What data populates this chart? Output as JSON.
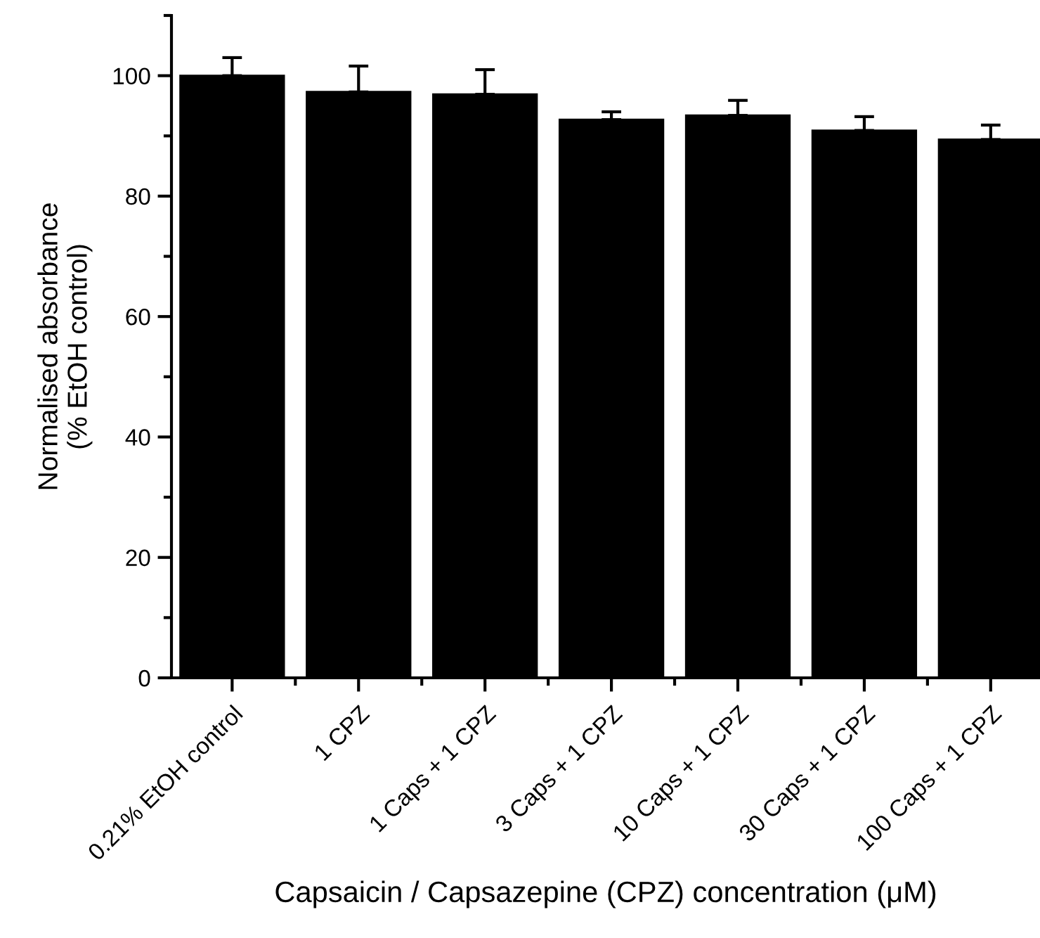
{
  "chart_data": {
    "type": "bar",
    "xlabel": "Capsaicin / Capsazepine (CPZ) concentration (μM)",
    "ylabel": "Normalised absorbance\n(% EtOH control)",
    "categories": [
      "0.21% EtOH control",
      "1 CPZ",
      "1 Caps + 1 CPZ",
      "3 Caps + 1 CPZ",
      "10 Caps + 1 CPZ",
      "30 Caps + 1 CPZ",
      "100 Caps + 1 CPZ"
    ],
    "values": [
      100,
      97.3,
      96.9,
      92.7,
      93.4,
      90.9,
      89.4
    ],
    "errors": [
      [
        100,
        103.0
      ],
      [
        97.3,
        101.6
      ],
      [
        96.9,
        101.0
      ],
      [
        92.7,
        94.0
      ],
      [
        93.4,
        95.9
      ],
      [
        90.9,
        93.2
      ],
      [
        89.4,
        91.8
      ]
    ],
    "color": "#000000",
    "ylim": [
      0,
      110
    ],
    "yticks": [
      0,
      20,
      40,
      60,
      80,
      100
    ],
    "grid": false,
    "legend": false
  }
}
